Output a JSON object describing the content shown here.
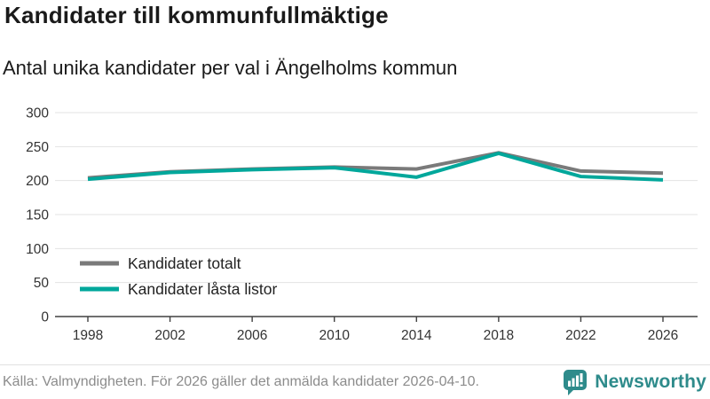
{
  "header": {
    "title": "Kandidater till kommunfullmäktige",
    "subtitle": "Antal unika kandidater per val i Ängelholms kommun"
  },
  "chart_data": {
    "type": "line",
    "x": [
      1998,
      2002,
      2006,
      2010,
      2014,
      2018,
      2022,
      2026
    ],
    "series": [
      {
        "name": "Kandidater totalt",
        "color": "#7a7a7a",
        "values": [
          204,
          213,
          217,
          220,
          217,
          241,
          214,
          211
        ]
      },
      {
        "name": "Kandidater låsta listor",
        "color": "#00a79b",
        "values": [
          202,
          212,
          216,
          219,
          205,
          240,
          206,
          201
        ]
      }
    ],
    "title": "Kandidater till kommunfullmäktige",
    "subtitle": "Antal unika kandidater per val i Ängelholms kommun",
    "xlabel": "",
    "ylabel": "",
    "ylim": [
      0,
      300
    ],
    "yticks": [
      0,
      50,
      100,
      150,
      200,
      250,
      300
    ],
    "xticks": [
      1998,
      2002,
      2006,
      2010,
      2014,
      2018,
      2022,
      2026
    ],
    "grid": true,
    "legend_position": "inside-bottom-left",
    "colors": {
      "grid": "#e3e3e3",
      "axis": "#404040",
      "tick_label": "#333333",
      "legend_label": "#222222"
    }
  },
  "footer": {
    "source": "Källa: Valmyndigheten. För 2026 gäller det anmälda kandidater 2026-04-10.",
    "brand": "Newsworthy",
    "brand_color": "#2e8b8b"
  }
}
